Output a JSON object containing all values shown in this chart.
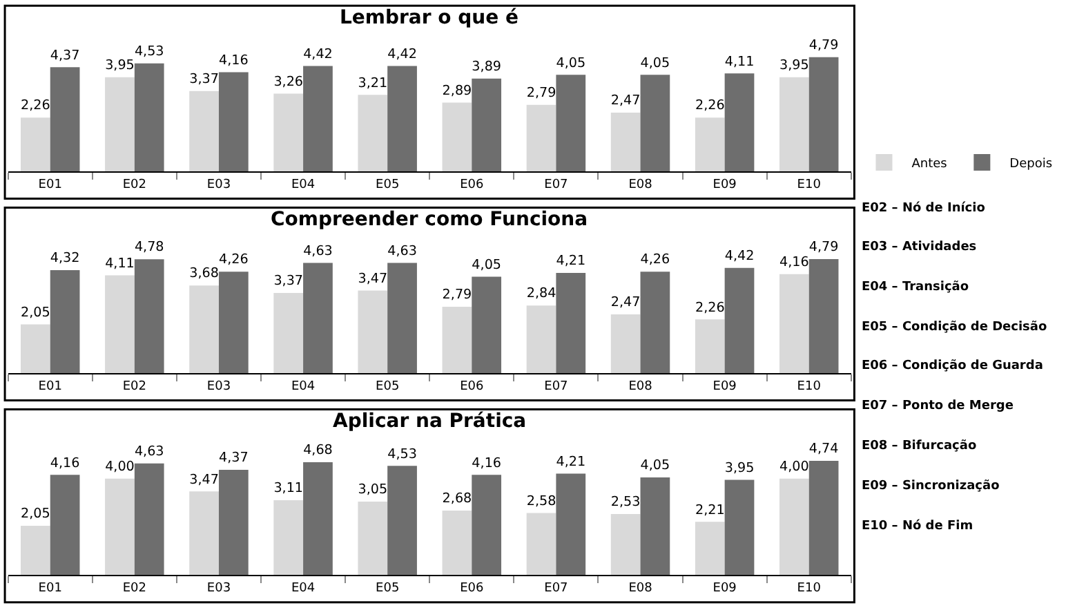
{
  "chart_data": [
    {
      "type": "bar",
      "title": "Lembrar o que é",
      "categories": [
        "E01",
        "E02",
        "E03",
        "E04",
        "E05",
        "E06",
        "E07",
        "E08",
        "E09",
        "E10"
      ],
      "legend": "right",
      "series": [
        {
          "name": "Antes",
          "color": "#d9d9d9",
          "values": [
            2.26,
            3.95,
            3.37,
            3.26,
            3.21,
            2.89,
            2.79,
            2.47,
            2.26,
            3.95
          ],
          "value_labels": [
            "2,26",
            "3,95",
            "3,37",
            "3,26",
            "3,21",
            "2,89",
            "2,79",
            "2,47",
            "2,26",
            "3,95"
          ]
        },
        {
          "name": "Depois",
          "color": "#6e6e6e",
          "values": [
            4.37,
            4.53,
            4.16,
            4.42,
            4.42,
            3.89,
            4.05,
            4.05,
            4.11,
            4.79
          ],
          "value_labels": [
            "4,37",
            "4,53",
            "4,16",
            "4,42",
            "4,42",
            "3,89",
            "4,05",
            "4,05",
            "4,11",
            "4,79"
          ]
        }
      ],
      "annotations": [
        "E02 – Nó de Início",
        "E03 – Atividades",
        "E04 – Transição",
        "E05 – Condição de Decisão",
        "E06 – Condição de Guarda",
        "E07 – Ponto de Merge",
        "E08 – Bifurcação",
        "E09 – Sincronização",
        "E10 – Nó de Fim"
      ]
    },
    {
      "type": "bar",
      "title": "Compreender como Funciona",
      "categories": [
        "E01",
        "E02",
        "E03",
        "E04",
        "E05",
        "E06",
        "E07",
        "E08",
        "E09",
        "E10"
      ],
      "series": [
        {
          "color": "#d9d9d9",
          "values": [
            2.05,
            4.11,
            3.68,
            3.37,
            3.47,
            2.79,
            2.84,
            2.47,
            2.26,
            4.16
          ],
          "value_labels": [
            "2,05",
            "4,11",
            "3,68",
            "3,37",
            "3,47",
            "2,79",
            "2,84",
            "2,47",
            "2,26",
            "4,16"
          ]
        },
        {
          "color": "#6e6e6e",
          "values": [
            4.32,
            4.78,
            4.26,
            4.63,
            4.63,
            4.05,
            4.21,
            4.26,
            4.42,
            4.79
          ],
          "value_labels": [
            "4,32",
            "4,78",
            "4,26",
            "4,63",
            "4,63",
            "4,05",
            "4,21",
            "4,26",
            "4,42",
            "4,79"
          ]
        }
      ]
    },
    {
      "type": "bar",
      "title": "Aplicar na Prática",
      "categories": [
        "E01",
        "E02",
        "E03",
        "E04",
        "E05",
        "E06",
        "E07",
        "E08",
        "E09",
        "E10"
      ],
      "series": [
        {
          "color": "#d9d9d9",
          "values": [
            2.05,
            4.0,
            3.47,
            3.11,
            3.05,
            2.68,
            2.58,
            2.53,
            2.21,
            4.0
          ],
          "value_labels": [
            "2,05",
            "4,00",
            "3,47",
            "3,11",
            "3,05",
            "2,68",
            "2,58",
            "2,53",
            "2,21",
            "4,00"
          ]
        },
        {
          "color": "#6e6e6e",
          "values": [
            4.16,
            4.63,
            4.37,
            4.68,
            4.53,
            4.16,
            4.21,
            4.05,
            3.95,
            4.74
          ],
          "value_labels": [
            "4,16",
            "4,63",
            "4,37",
            "4,68",
            "4,53",
            "4,16",
            "4,21",
            "4,05",
            "3,95",
            "4,74"
          ]
        }
      ]
    }
  ]
}
